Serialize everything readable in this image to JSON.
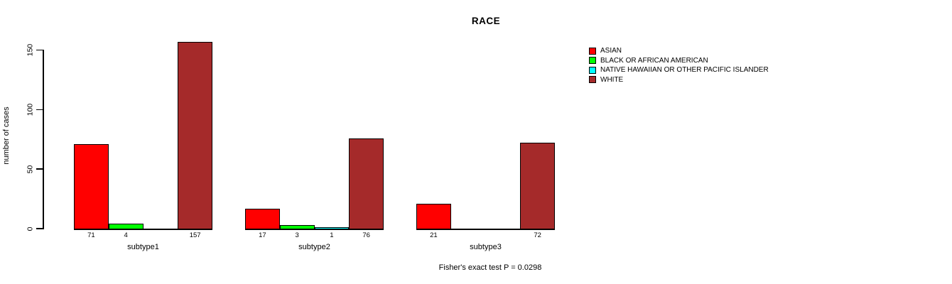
{
  "chart": {
    "title": "RACE",
    "ylabel": "number of cases",
    "footer": "Fisher's exact test P = 0.0298"
  },
  "chart_data": {
    "type": "bar",
    "grouped": true,
    "title": "RACE",
    "xlabel": "",
    "ylabel": "number of cases",
    "categories": [
      "subtype1",
      "subtype2",
      "subtype3"
    ],
    "series": [
      {
        "name": "ASIAN",
        "color": "#FF0000",
        "values": [
          71,
          17,
          21
        ]
      },
      {
        "name": "BLACK OR AFRICAN AMERICAN",
        "color": "#00FF00",
        "values": [
          4,
          3,
          0
        ]
      },
      {
        "name": "NATIVE HAWAIIAN OR OTHER PACIFIC ISLANDER",
        "color": "#00FFFF",
        "values": [
          0,
          1,
          0
        ]
      },
      {
        "name": "WHITE",
        "color": "#A52A2A",
        "values": [
          157,
          76,
          72
        ]
      }
    ],
    "bar_value_labels": {
      "subtype1": [
        "71",
        "4",
        "",
        "157"
      ],
      "subtype2": [
        "17",
        "3",
        "1",
        "76"
      ],
      "subtype3": [
        "21",
        "",
        "",
        "72"
      ]
    },
    "yticks": [
      0,
      50,
      100,
      150
    ],
    "ylim": [
      0,
      160
    ],
    "grid": false,
    "legend_position": "top-right",
    "annotation": "Fisher's exact test P = 0.0298"
  }
}
